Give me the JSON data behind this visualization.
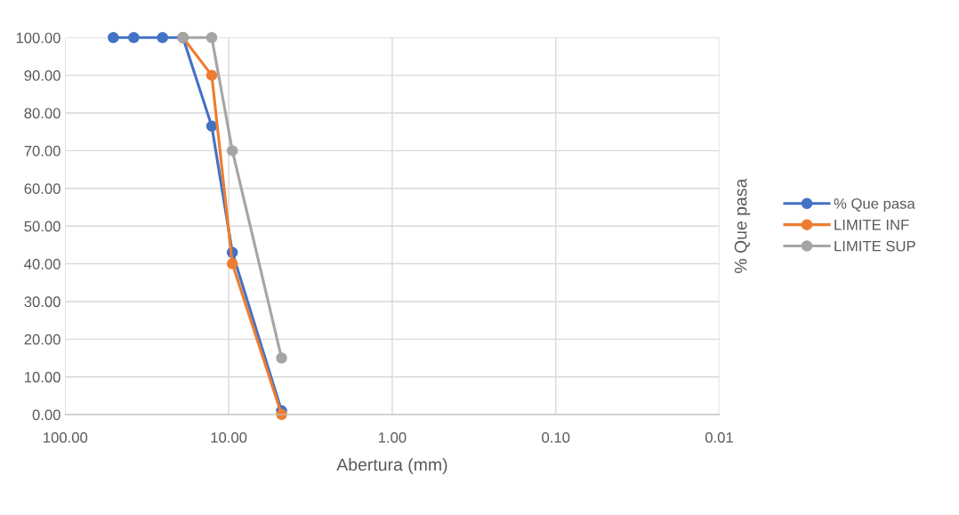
{
  "chart_data": {
    "type": "line",
    "xlabel": "Abertura (mm)",
    "ylabel": "% Que pasa",
    "log": "x",
    "xlim": [
      100,
      0.01
    ],
    "xticks": [
      {
        "value": 100,
        "label": "100.00"
      },
      {
        "value": 10,
        "label": "10.00"
      },
      {
        "value": 1,
        "label": "1.00"
      },
      {
        "value": 0.1,
        "label": "0.10"
      },
      {
        "value": 0.01,
        "label": "0.01"
      }
    ],
    "ylim": [
      0,
      100
    ],
    "yticks": [
      {
        "value": 0,
        "label": "0.00"
      },
      {
        "value": 10,
        "label": "10.00"
      },
      {
        "value": 20,
        "label": "20.00"
      },
      {
        "value": 30,
        "label": "30.00"
      },
      {
        "value": 40,
        "label": "40.00"
      },
      {
        "value": 50,
        "label": "50.00"
      },
      {
        "value": 60,
        "label": "60.00"
      },
      {
        "value": 70,
        "label": "70.00"
      },
      {
        "value": 80,
        "label": "80.00"
      },
      {
        "value": 90,
        "label": "90.00"
      },
      {
        "value": 100,
        "label": "100.00"
      }
    ],
    "grid": true,
    "legend": "right",
    "marker": "circle",
    "line_style": "solid",
    "series": [
      {
        "name": "% Que pasa",
        "color": "#4472c4",
        "x": [
          50.8,
          38.1,
          25.4,
          19.05,
          12.7,
          9.5,
          4.75
        ],
        "values": [
          100,
          100,
          100,
          100,
          76.5,
          43,
          1
        ]
      },
      {
        "name": "LIMITE INF",
        "color": "#ed7d31",
        "x": [
          19.05,
          12.7,
          9.5,
          4.75
        ],
        "values": [
          100,
          90,
          40,
          0
        ]
      },
      {
        "name": "LIMITE SUP",
        "color": "#a5a5a5",
        "x": [
          19.05,
          12.7,
          9.5,
          4.75
        ],
        "values": [
          100,
          100,
          70,
          15
        ]
      }
    ]
  }
}
